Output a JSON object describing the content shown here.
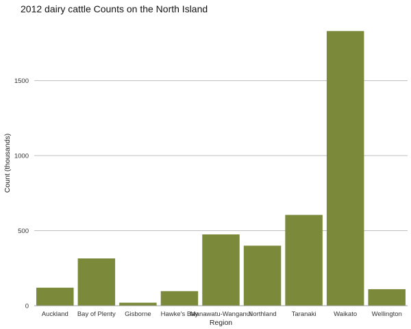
{
  "chart_data": {
    "type": "bar",
    "title": "2012 dairy cattle Counts on the North Island",
    "xlabel": "Region",
    "ylabel": "Count (thousands)",
    "categories": [
      "Auckland",
      "Bay of Plenty",
      "Gisborne",
      "Hawke's Bay",
      "Manawatu-Wanganui",
      "Northland",
      "Taranaki",
      "Waikato",
      "Wellington"
    ],
    "values": [
      120,
      315,
      20,
      97,
      475,
      400,
      605,
      1830,
      110
    ],
    "yticks": [
      0,
      500,
      1000,
      1500
    ],
    "ylim": [
      0,
      1900
    ],
    "grid": "horizontal major",
    "legend": "none",
    "bar_color": "#7a8a3a"
  }
}
